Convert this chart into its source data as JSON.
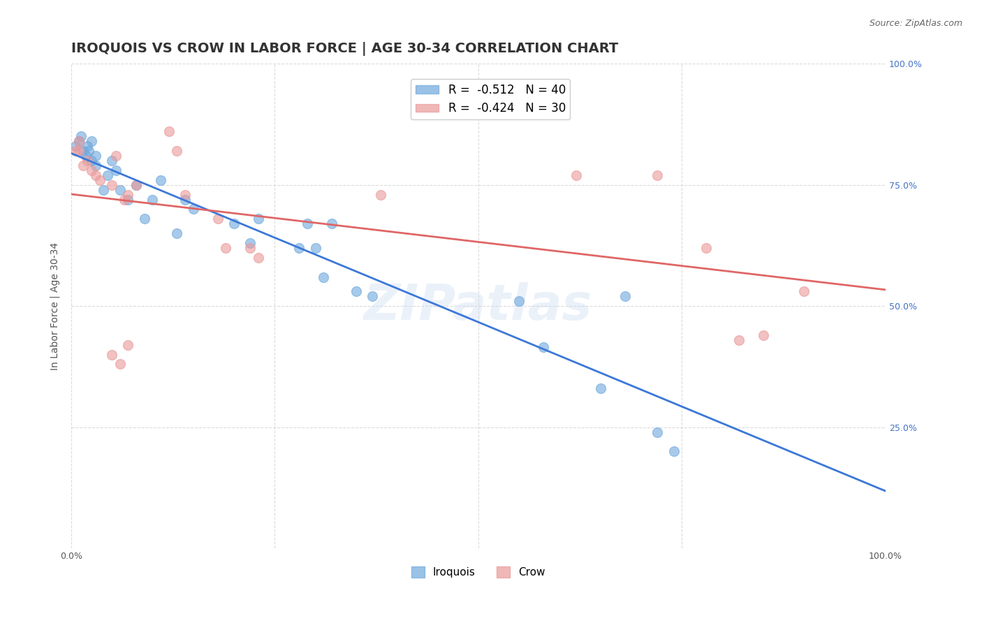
{
  "title": "IROQUOIS VS CROW IN LABOR FORCE | AGE 30-34 CORRELATION CHART",
  "source": "Source: ZipAtlas.com",
  "xlabel": "",
  "ylabel": "In Labor Force | Age 30-34",
  "legend_iroquois": "Iroquois",
  "legend_crow": "Crow",
  "r_iroquois": -0.512,
  "n_iroquois": 40,
  "r_crow": -0.424,
  "n_crow": 30,
  "xlim": [
    0,
    1
  ],
  "ylim": [
    0,
    1
  ],
  "iroquois_color": "#6fa8dc",
  "crow_color": "#ea9999",
  "iroquois_line_color": "#3c78d8",
  "crow_line_color": "#e06666",
  "background_color": "#ffffff",
  "grid_color": "#cccccc",
  "iroquois_x": [
    0.005,
    0.01,
    0.012,
    0.015,
    0.018,
    0.02,
    0.022,
    0.025,
    0.025,
    0.03,
    0.03,
    0.04,
    0.045,
    0.05,
    0.055,
    0.06,
    0.07,
    0.08,
    0.09,
    0.1,
    0.11,
    0.13,
    0.14,
    0.15,
    0.2,
    0.22,
    0.23,
    0.28,
    0.29,
    0.3,
    0.31,
    0.32,
    0.35,
    0.37,
    0.55,
    0.58,
    0.65,
    0.68,
    0.72,
    0.74
  ],
  "iroquois_y": [
    0.83,
    0.84,
    0.85,
    0.82,
    0.81,
    0.83,
    0.82,
    0.84,
    0.8,
    0.79,
    0.81,
    0.74,
    0.77,
    0.8,
    0.78,
    0.74,
    0.72,
    0.75,
    0.68,
    0.72,
    0.76,
    0.65,
    0.72,
    0.7,
    0.67,
    0.63,
    0.68,
    0.62,
    0.67,
    0.62,
    0.56,
    0.67,
    0.53,
    0.52,
    0.51,
    0.415,
    0.33,
    0.52,
    0.24,
    0.2
  ],
  "crow_x": [
    0.005,
    0.01,
    0.01,
    0.015,
    0.02,
    0.025,
    0.03,
    0.035,
    0.05,
    0.055,
    0.065,
    0.07,
    0.08,
    0.12,
    0.13,
    0.14,
    0.18,
    0.19,
    0.22,
    0.23,
    0.05,
    0.06,
    0.07,
    0.38,
    0.62,
    0.72,
    0.78,
    0.82,
    0.85,
    0.9
  ],
  "crow_y": [
    0.82,
    0.84,
    0.82,
    0.79,
    0.8,
    0.78,
    0.77,
    0.76,
    0.75,
    0.81,
    0.72,
    0.73,
    0.75,
    0.86,
    0.82,
    0.73,
    0.68,
    0.62,
    0.62,
    0.6,
    0.4,
    0.38,
    0.42,
    0.73,
    0.77,
    0.77,
    0.62,
    0.43,
    0.44,
    0.53
  ],
  "watermark": "ZIPatlas",
  "title_fontsize": 14,
  "axis_label_fontsize": 10,
  "tick_fontsize": 9,
  "legend_fontsize": 12,
  "marker_size": 100
}
